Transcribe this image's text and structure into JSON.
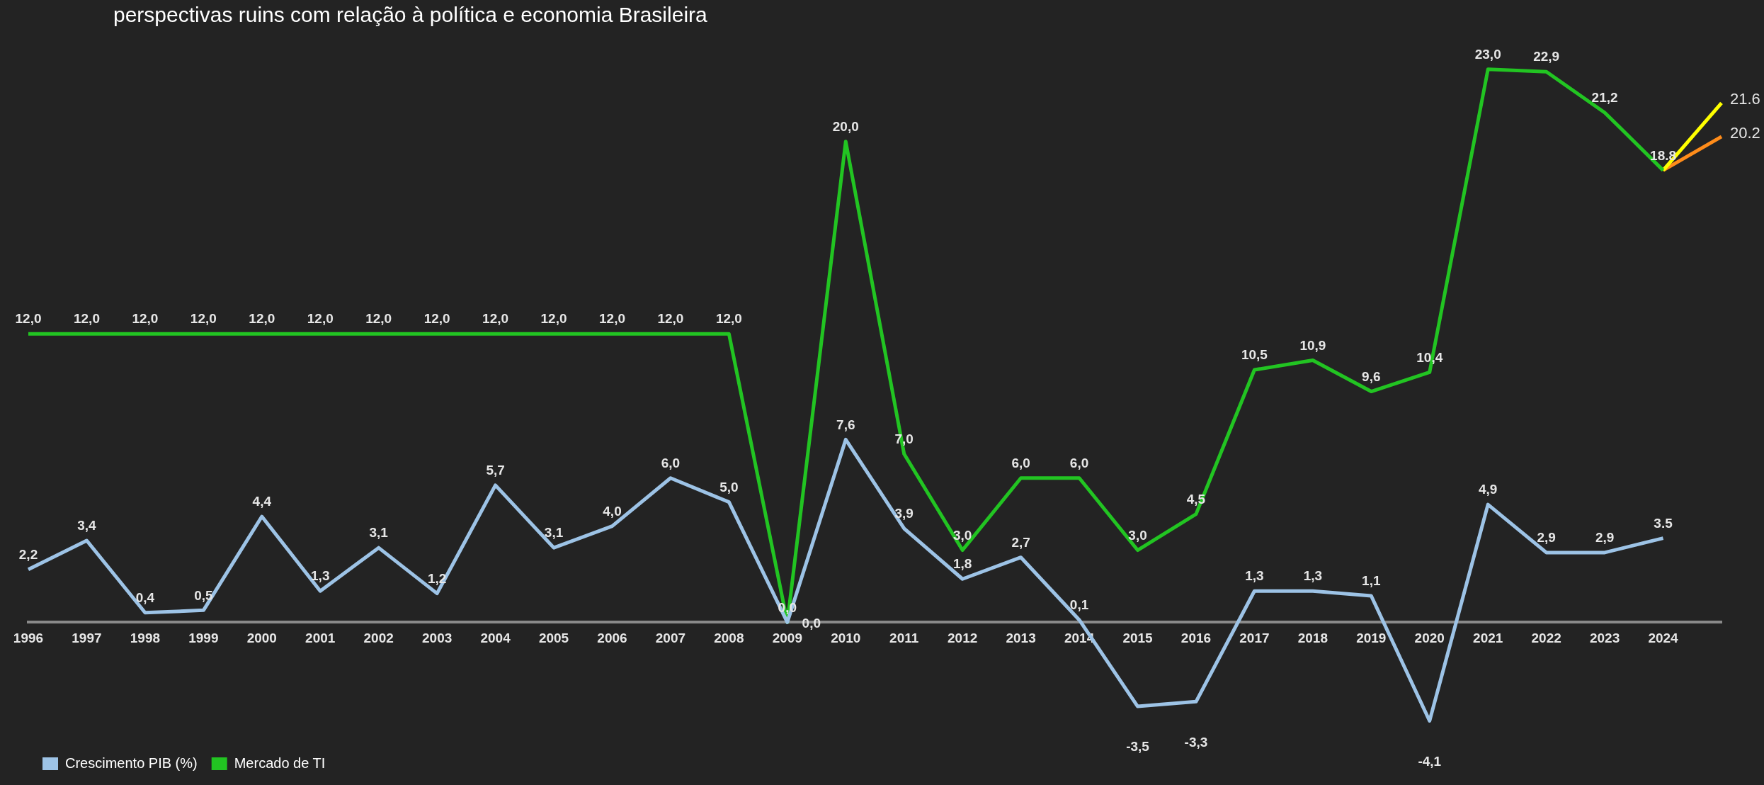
{
  "chart_data": {
    "type": "line",
    "title": "perspectivas ruins com relação à política e economia Brasileira",
    "categories": [
      "1996",
      "1997",
      "1998",
      "1999",
      "2000",
      "2001",
      "2002",
      "2003",
      "2004",
      "2005",
      "2006",
      "2007",
      "2008",
      "2009",
      "2010",
      "2011",
      "2012",
      "2013",
      "2014",
      "2015",
      "2016",
      "2017",
      "2018",
      "2019",
      "2020",
      "2021",
      "2022",
      "2023",
      "2024",
      null
    ],
    "series": [
      {
        "name": "Crescimento PIB (%)",
        "color": "#9dc3e6",
        "values": [
          2.2,
          3.4,
          0.4,
          0.5,
          4.4,
          1.3,
          3.1,
          1.2,
          5.7,
          3.1,
          4.0,
          6.0,
          5.0,
          0.0,
          7.6,
          3.9,
          1.8,
          2.7,
          0.1,
          -3.5,
          -3.3,
          1.3,
          1.3,
          1.1,
          -4.1,
          4.9,
          2.9,
          2.9,
          3.5,
          null
        ],
        "value_labels": [
          "2,2",
          "3,4",
          "0,4",
          "0,5",
          "4,4",
          "1,3",
          "3,1",
          "1,2",
          "5,7",
          "3,1",
          "4,0",
          "6,0",
          "5,0",
          "0,0",
          "7,6",
          "3,9",
          "1,8",
          "2,7",
          "0,1",
          "-3,5",
          "-3,3",
          "1,3",
          "1,3",
          "1,1",
          "-4,1",
          "4,9",
          "2,9",
          "2,9",
          "3.5",
          null
        ]
      },
      {
        "name": "Mercado de TI",
        "color": "#22c422",
        "values": [
          12.0,
          12.0,
          12.0,
          12.0,
          12.0,
          12.0,
          12.0,
          12.0,
          12.0,
          12.0,
          12.0,
          12.0,
          12.0,
          0.0,
          20.0,
          7.0,
          3.0,
          6.0,
          6.0,
          3.0,
          4.5,
          10.5,
          10.9,
          9.6,
          10.4,
          23.0,
          22.9,
          21.2,
          18.8,
          null
        ],
        "value_labels": [
          "12,0",
          "12,0",
          "12,0",
          "12,0",
          "12,0",
          "12,0",
          "12,0",
          "12,0",
          "12,0",
          "12,0",
          "12,0",
          "12,0",
          "12,0",
          "0,0",
          "20,0",
          "7,0",
          "3,0",
          "6,0",
          "6,0",
          "3,0",
          "4,5",
          "10,5",
          "10,9",
          "9,6",
          "10,4",
          "23,0",
          "22,9",
          "21,2",
          "18.8",
          null
        ]
      },
      {
        "color": "#ffff00",
        "values": [
          null,
          null,
          null,
          null,
          null,
          null,
          null,
          null,
          null,
          null,
          null,
          null,
          null,
          null,
          null,
          null,
          null,
          null,
          null,
          null,
          null,
          null,
          null,
          null,
          null,
          null,
          null,
          null,
          18.8,
          21.6
        ],
        "value_labels": [
          null,
          null,
          null,
          null,
          null,
          null,
          null,
          null,
          null,
          null,
          null,
          null,
          null,
          null,
          null,
          null,
          null,
          null,
          null,
          null,
          null,
          null,
          null,
          null,
          null,
          null,
          null,
          null,
          null,
          "21.6"
        ]
      },
      {
        "color": "#ff8c1a",
        "values": [
          null,
          null,
          null,
          null,
          null,
          null,
          null,
          null,
          null,
          null,
          null,
          null,
          null,
          null,
          null,
          null,
          null,
          null,
          null,
          null,
          null,
          null,
          null,
          null,
          null,
          null,
          null,
          null,
          18.8,
          20.2
        ],
        "value_labels": [
          null,
          null,
          null,
          null,
          null,
          null,
          null,
          null,
          null,
          null,
          null,
          null,
          null,
          null,
          null,
          null,
          null,
          null,
          null,
          null,
          null,
          null,
          null,
          null,
          null,
          null,
          null,
          null,
          null,
          "20.2"
        ]
      }
    ],
    "tick_labels": "x",
    "legend": "bottom left",
    "marker": "none",
    "line_style": "solid",
    "grid": false
  }
}
